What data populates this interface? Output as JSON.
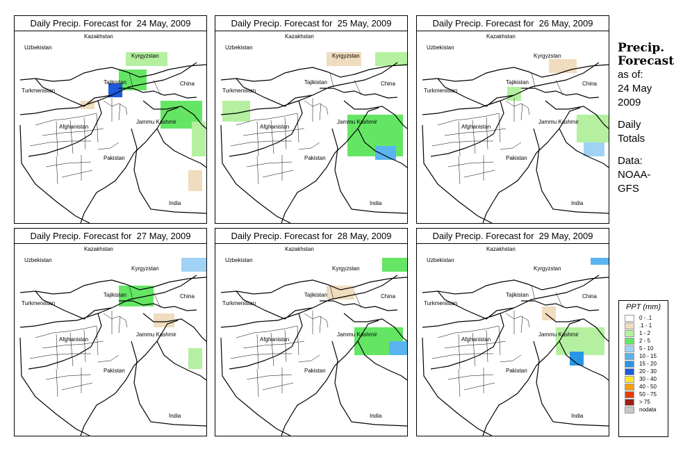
{
  "panels": [
    {
      "title": "Daily Precip. Forecast for  24 May, 2009"
    },
    {
      "title": "Daily Precip. Forecast for  25 May, 2009"
    },
    {
      "title": "Daily Precip. Forecast for  26 May, 2009"
    },
    {
      "title": "Daily Precip. Forecast for  27 May, 2009"
    },
    {
      "title": "Daily Precip. Forecast for  28 May, 2009"
    },
    {
      "title": "Daily Precip. Forecast for  29 May, 2009"
    }
  ],
  "map_labels": {
    "kazakhstan": "Kazakhstan",
    "uzbekistan": "Uzbekistan",
    "kyrgyzstan": "Kyrgyzstan",
    "tajikistan": "Tajikistan",
    "turkmenistan": "Turkmenistan",
    "china": "China",
    "afghanistan": "Afghanistan",
    "jammu_kashmir": "Jammu Kashmir",
    "pakistan": "Pakistan",
    "india": "India"
  },
  "sidebar": {
    "heading_line1": "Precip.",
    "heading_line2": "Forecast",
    "as_of": "as of:",
    "date_line1": "24 May",
    "date_line2": "2009",
    "totals_line1": "Daily",
    "totals_line2": "Totals",
    "data_line1": "Data:",
    "data_line2": "NOAA-",
    "data_line3": "GFS"
  },
  "legend": {
    "title": "PPT (mm)",
    "items": [
      {
        "label": "0 - .1",
        "color": "#ffffff"
      },
      {
        "label": ".1 - 1",
        "color": "#f0dcbe"
      },
      {
        "label": "1 - 2",
        "color": "#b4f0a0"
      },
      {
        "label": "2 - 5",
        "color": "#64e664"
      },
      {
        "label": "5 - 10",
        "color": "#a0d2f5"
      },
      {
        "label": "10 - 15",
        "color": "#5ab4f0"
      },
      {
        "label": "15 - 20",
        "color": "#2896e6"
      },
      {
        "label": "20 - 30",
        "color": "#1e5adc"
      },
      {
        "label": "30 - 40",
        "color": "#fae632"
      },
      {
        "label": "40 - 50",
        "color": "#f5a014"
      },
      {
        "label": "50 - 75",
        "color": "#e63c0a"
      },
      {
        "label": "> 75",
        "color": "#a01e14"
      },
      {
        "label": "nodata",
        "color": "#c8c8c8"
      }
    ]
  }
}
